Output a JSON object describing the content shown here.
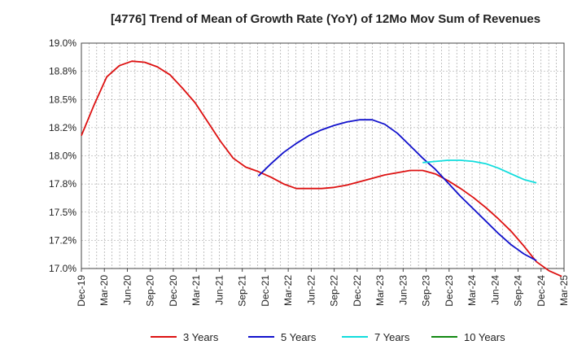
{
  "chart_data": {
    "type": "line",
    "title": "[4776]  Trend of Mean of Growth Rate (YoY) of 12Mo Mov Sum of Revenues",
    "xlabel": "",
    "ylabel": "",
    "ylim": [
      17.0,
      19.0
    ],
    "yticks": [
      {
        "v": 17.0,
        "label": "17.0%"
      },
      {
        "v": 17.25,
        "label": "17.2%"
      },
      {
        "v": 17.5,
        "label": "17.5%"
      },
      {
        "v": 17.75,
        "label": "17.8%"
      },
      {
        "v": 18.0,
        "label": "18.0%"
      },
      {
        "v": 18.25,
        "label": "18.2%"
      },
      {
        "v": 18.5,
        "label": "18.5%"
      },
      {
        "v": 18.75,
        "label": "18.8%"
      },
      {
        "v": 19.0,
        "label": "19.0%"
      }
    ],
    "xticks": [
      "Dec-19",
      "Mar-20",
      "Jun-20",
      "Sep-20",
      "Dec-20",
      "Mar-21",
      "Jun-21",
      "Sep-21",
      "Dec-21",
      "Mar-22",
      "Jun-22",
      "Sep-22",
      "Dec-22",
      "Mar-23",
      "Jun-23",
      "Sep-23",
      "Dec-23",
      "Mar-24",
      "Jun-24",
      "Sep-24",
      "Dec-24",
      "Mar-25"
    ],
    "grid": true,
    "legend_position": "bottom",
    "series": [
      {
        "name": "3 Years",
        "color": "#dd1111",
        "points": [
          [
            0,
            18.18
          ],
          [
            1,
            18.45
          ],
          [
            2,
            18.7
          ],
          [
            3,
            18.8
          ],
          [
            4,
            18.84
          ],
          [
            5,
            18.83
          ],
          [
            6,
            18.79
          ],
          [
            7,
            18.72
          ],
          [
            8,
            18.6
          ],
          [
            9,
            18.47
          ],
          [
            10,
            18.3
          ],
          [
            11,
            18.13
          ],
          [
            12,
            17.98
          ],
          [
            13,
            17.9
          ],
          [
            14,
            17.86
          ],
          [
            15,
            17.81
          ],
          [
            16,
            17.75
          ],
          [
            17,
            17.71
          ],
          [
            18,
            17.71
          ],
          [
            19,
            17.71
          ],
          [
            20,
            17.72
          ],
          [
            21,
            17.74
          ],
          [
            22,
            17.77
          ],
          [
            23,
            17.8
          ],
          [
            24,
            17.83
          ],
          [
            25,
            17.85
          ],
          [
            26,
            17.87
          ],
          [
            27,
            17.87
          ],
          [
            28,
            17.84
          ],
          [
            29,
            17.78
          ],
          [
            30,
            17.71
          ],
          [
            31,
            17.63
          ],
          [
            32,
            17.54
          ],
          [
            33,
            17.44
          ],
          [
            34,
            17.33
          ],
          [
            35,
            17.2
          ],
          [
            36,
            17.06
          ],
          [
            37,
            16.98
          ],
          [
            38,
            16.93
          ]
        ]
      },
      {
        "name": "5 Years",
        "color": "#1111cc",
        "points": [
          [
            14,
            17.82
          ],
          [
            15,
            17.93
          ],
          [
            16,
            18.03
          ],
          [
            17,
            18.11
          ],
          [
            18,
            18.18
          ],
          [
            19,
            18.23
          ],
          [
            20,
            18.27
          ],
          [
            21,
            18.3
          ],
          [
            22,
            18.32
          ],
          [
            23,
            18.32
          ],
          [
            24,
            18.28
          ],
          [
            25,
            18.2
          ],
          [
            26,
            18.09
          ],
          [
            27,
            17.98
          ],
          [
            28,
            17.88
          ],
          [
            29,
            17.76
          ],
          [
            30,
            17.64
          ],
          [
            31,
            17.53
          ],
          [
            32,
            17.42
          ],
          [
            33,
            17.31
          ],
          [
            34,
            17.21
          ],
          [
            35,
            17.13
          ],
          [
            36,
            17.07
          ]
        ]
      },
      {
        "name": "7 Years",
        "color": "#11dddd",
        "points": [
          [
            27,
            17.94
          ],
          [
            28,
            17.95
          ],
          [
            29,
            17.96
          ],
          [
            30,
            17.96
          ],
          [
            31,
            17.95
          ],
          [
            32,
            17.93
          ],
          [
            33,
            17.89
          ],
          [
            34,
            17.84
          ],
          [
            35,
            17.79
          ],
          [
            36,
            17.76
          ]
        ]
      },
      {
        "name": "10 Years",
        "color": "#118811",
        "points": []
      }
    ]
  }
}
